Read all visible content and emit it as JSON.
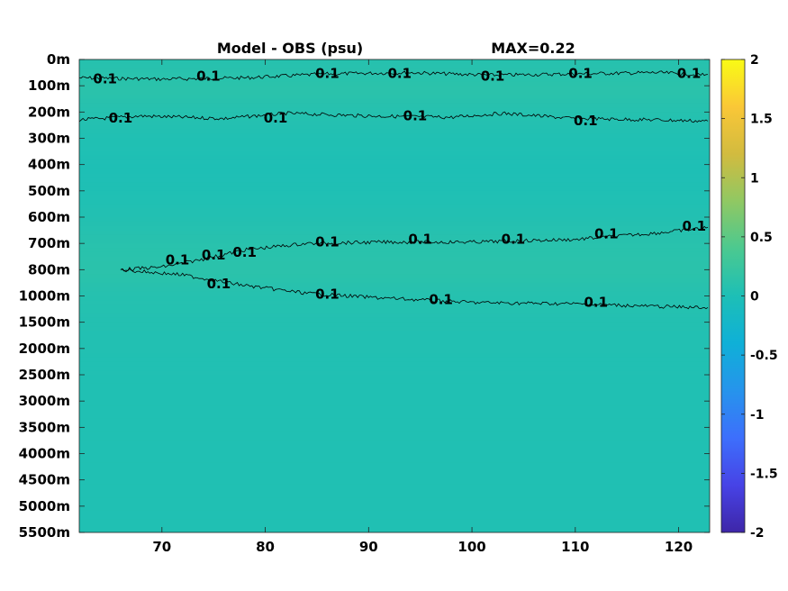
{
  "chart_data": {
    "type": "heatmap",
    "title": "Model - OBS (psu)",
    "max_label": "MAX=0.22",
    "x_ticks": [
      70,
      80,
      90,
      100,
      110,
      120
    ],
    "xlim": [
      62,
      123
    ],
    "y_ticks": [
      "0m",
      "100m",
      "200m",
      "300m",
      "400m",
      "500m",
      "600m",
      "700m",
      "800m",
      "1000m",
      "1500m",
      "2000m",
      "2500m",
      "3000m",
      "3500m",
      "4000m",
      "4500m",
      "5000m",
      "5500m"
    ],
    "colorbar": {
      "ticks": [
        2,
        1.5,
        1,
        0.5,
        0,
        -0.5,
        -1,
        -1.5,
        -2
      ],
      "range": [
        -2,
        2
      ],
      "colors": [
        "#3e26a8",
        "#4743e6",
        "#3d6ffc",
        "#2694ec",
        "#0fb0d7",
        "#1dbfb6",
        "#4bc990",
        "#90c863",
        "#d2bb3f",
        "#fac737",
        "#f9fb15"
      ]
    },
    "field": {
      "levels_depth_index": [
        0,
        1,
        2,
        3,
        4,
        5,
        6,
        7,
        8,
        9,
        10,
        11,
        12,
        13,
        14,
        15,
        16,
        17,
        18
      ],
      "level_values": [
        0.08,
        0.12,
        0.07,
        0.03,
        0.01,
        0.02,
        0.05,
        0.1,
        0.12,
        0.07,
        0.05,
        0.04,
        0.03,
        0.03,
        0.03,
        0.03,
        0.03,
        0.03,
        0.03
      ]
    },
    "contour_level": 0.1,
    "contour_labels": [
      {
        "text": "0.1",
        "x": 64.5,
        "depth_index": 0.7
      },
      {
        "text": "0.1",
        "x": 74.5,
        "depth_index": 0.6
      },
      {
        "text": "0.1",
        "x": 86,
        "depth_index": 0.5
      },
      {
        "text": "0.1",
        "x": 93,
        "depth_index": 0.5
      },
      {
        "text": "0.1",
        "x": 102,
        "depth_index": 0.6
      },
      {
        "text": "0.1",
        "x": 110.5,
        "depth_index": 0.5
      },
      {
        "text": "0.1",
        "x": 121,
        "depth_index": 0.5
      },
      {
        "text": "0.1",
        "x": 66,
        "depth_index": 2.2
      },
      {
        "text": "0.1",
        "x": 81,
        "depth_index": 2.2
      },
      {
        "text": "0.1",
        "x": 94.5,
        "depth_index": 2.1
      },
      {
        "text": "0.1",
        "x": 111,
        "depth_index": 2.3
      },
      {
        "text": "0.1",
        "x": 71.5,
        "depth_index": 7.6
      },
      {
        "text": "0.1",
        "x": 75,
        "depth_index": 7.4
      },
      {
        "text": "0.1",
        "x": 78,
        "depth_index": 7.3
      },
      {
        "text": "0.1",
        "x": 86,
        "depth_index": 6.9
      },
      {
        "text": "0.1",
        "x": 95,
        "depth_index": 6.8
      },
      {
        "text": "0.1",
        "x": 104,
        "depth_index": 6.8
      },
      {
        "text": "0.1",
        "x": 113,
        "depth_index": 6.6
      },
      {
        "text": "0.1",
        "x": 121.5,
        "depth_index": 6.3
      },
      {
        "text": "0.1",
        "x": 75.5,
        "depth_index": 8.5
      },
      {
        "text": "0.1",
        "x": 86,
        "depth_index": 8.9
      },
      {
        "text": "0.1",
        "x": 97,
        "depth_index": 9.1
      },
      {
        "text": "0.1",
        "x": 112,
        "depth_index": 9.2
      }
    ],
    "contour_lines": [
      {
        "x": [
          62,
          70,
          78,
          86,
          94,
          102,
          110,
          118,
          123
        ],
        "depth_index": [
          0.7,
          0.75,
          0.7,
          0.55,
          0.5,
          0.6,
          0.55,
          0.5,
          0.6
        ]
      },
      {
        "x": [
          62,
          68,
          76,
          82,
          90,
          98,
          103,
          110,
          118,
          123
        ],
        "depth_index": [
          2.3,
          2.15,
          2.25,
          2.05,
          2.15,
          2.2,
          2.05,
          2.25,
          2.3,
          2.35
        ]
      },
      {
        "x": [
          66,
          70,
          74,
          78,
          84,
          92,
          100,
          110,
          118,
          123
        ],
        "depth_index": [
          8.0,
          7.9,
          7.6,
          7.25,
          7.0,
          6.95,
          6.95,
          6.85,
          6.6,
          6.4
        ]
      },
      {
        "x": [
          66,
          72,
          78,
          84,
          90,
          100,
          110,
          118,
          123
        ],
        "depth_index": [
          8.0,
          8.2,
          8.6,
          8.9,
          9.05,
          9.25,
          9.3,
          9.4,
          9.45
        ]
      }
    ]
  }
}
